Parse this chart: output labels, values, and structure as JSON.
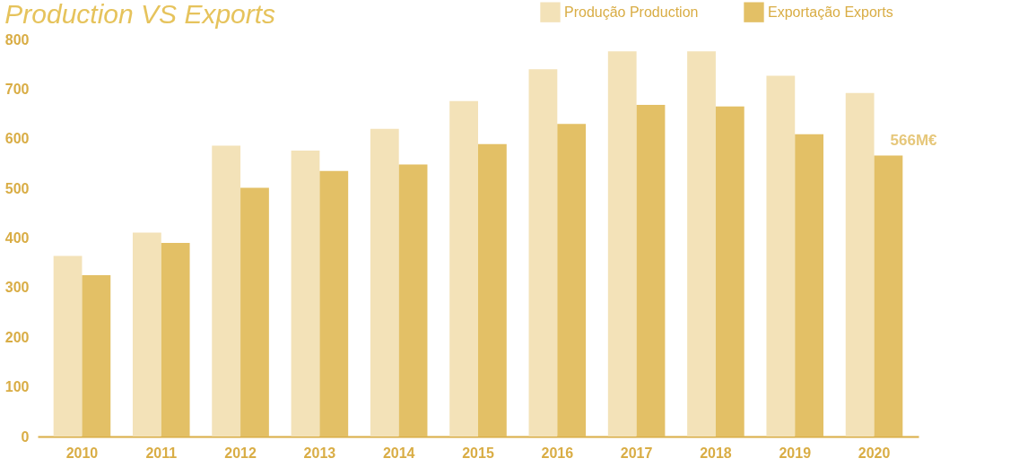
{
  "chart_data": {
    "type": "bar",
    "title": "Production VS Exports",
    "categories": [
      "2010",
      "2011",
      "2012",
      "2013",
      "2014",
      "2015",
      "2016",
      "2017",
      "2018",
      "2019",
      "2020"
    ],
    "series": [
      {
        "name": "Produção Production",
        "color": "#f3e2b8",
        "values": [
          364,
          411,
          586,
          576,
          620,
          676,
          740,
          776,
          776,
          727,
          692
        ]
      },
      {
        "name": "Exportação Exports",
        "color": "#e3c066",
        "values": [
          325,
          390,
          501,
          535,
          548,
          589,
          630,
          668,
          665,
          609,
          566
        ]
      }
    ],
    "ylim": [
      0,
      800
    ],
    "yticks": [
      0,
      100,
      200,
      300,
      400,
      500,
      600,
      700,
      800
    ],
    "grid": false,
    "legend": "top right",
    "annotations": [
      {
        "text": "566M€",
        "x": "2020",
        "y": 566
      }
    ]
  }
}
